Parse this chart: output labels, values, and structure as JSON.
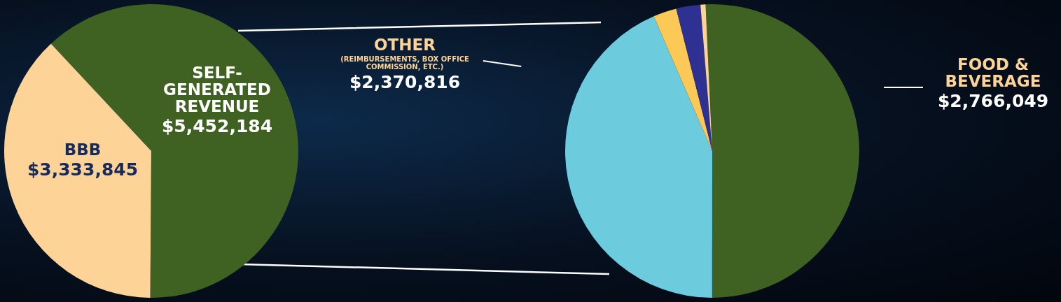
{
  "chart_data": [
    {
      "type": "pie",
      "categories": [
        "SELF-GENERATED REVENUE",
        "BBB"
      ],
      "values": [
        5452184,
        3333845
      ],
      "colors": [
        "#3f6121",
        "#fdd397"
      ],
      "value_labels": [
        "$5,452,184",
        "$3,333,845"
      ]
    },
    {
      "type": "pie",
      "categories": [
        "FOOD & BEVERAGE",
        "OTHER (REIMBURSEMENTS, BOX OFFICE COMMISSION, ETC.)",
        null,
        null,
        null
      ],
      "values": [
        2766049,
        2370816,
        140000,
        145000,
        30319
      ],
      "colors": [
        "#3f6121",
        "#6ccbdc",
        "#fcc957",
        "#2e3191",
        "#fdd397"
      ],
      "value_labels": [
        "$2,766,049",
        "$2,370,816",
        null,
        null,
        null
      ]
    }
  ]
}
